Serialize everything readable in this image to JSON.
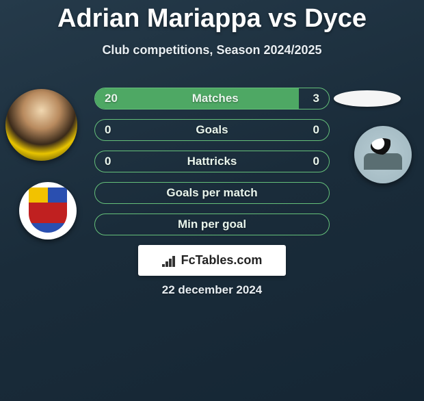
{
  "title": "Adrian Mariappa vs Dyce",
  "subtitle": "Club competitions, Season 2024/2025",
  "colors": {
    "bar_border": "#65c07a",
    "bar_fill": "#4ea864"
  },
  "rows": [
    {
      "label": "Matches",
      "left": "20",
      "right": "3",
      "fill_pct": 87
    },
    {
      "label": "Goals",
      "left": "0",
      "right": "0",
      "fill_pct": 0
    },
    {
      "label": "Hattricks",
      "left": "0",
      "right": "0",
      "fill_pct": 0
    }
  ],
  "single_rows": [
    {
      "label": "Goals per match"
    },
    {
      "label": "Min per goal"
    }
  ],
  "brand": "FcTables.com",
  "date": "22 december 2024"
}
